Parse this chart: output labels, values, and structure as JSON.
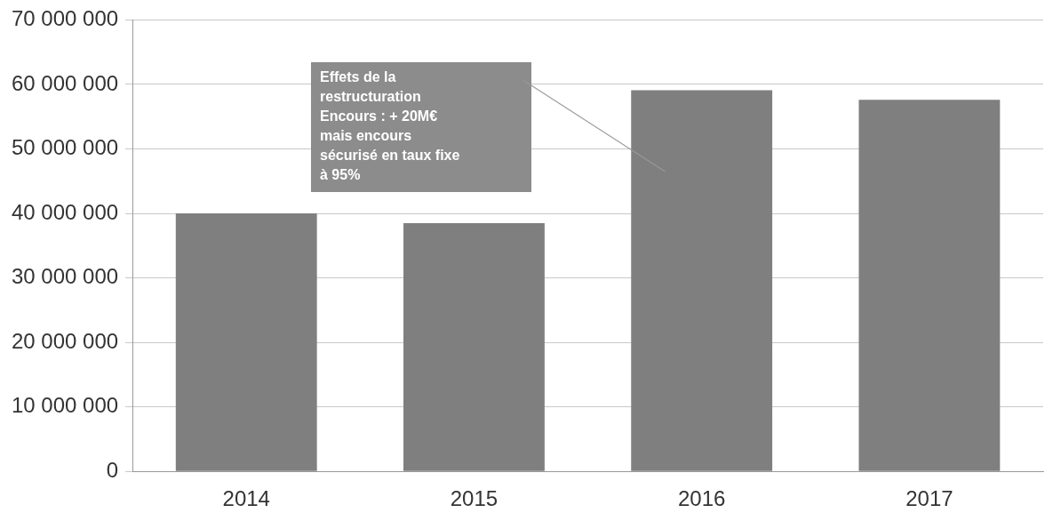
{
  "chart_data": {
    "type": "bar",
    "categories": [
      "2014",
      "2015",
      "2016",
      "2017"
    ],
    "values": [
      40000000,
      38500000,
      59100000,
      57600000
    ],
    "color": "#7f7f7f",
    "ylim": [
      0,
      70000000
    ],
    "yticks": [
      {
        "value": 0,
        "label": "0"
      },
      {
        "value": 10000000,
        "label": "10 000 000"
      },
      {
        "value": 20000000,
        "label": "20 000 000"
      },
      {
        "value": 30000000,
        "label": "30 000 000"
      },
      {
        "value": 40000000,
        "label": "40 000 000"
      },
      {
        "value": 50000000,
        "label": "50 000 000"
      },
      {
        "value": 60000000,
        "label": "60 000 000"
      },
      {
        "value": 70000000,
        "label": "70 000 000"
      }
    ],
    "grid": "y",
    "annotations": [
      "Effets de la\nrestructuration\nEncours : + 20M€\nmais encours\nsécurisé en taux fixe\nà 95%"
    ]
  }
}
